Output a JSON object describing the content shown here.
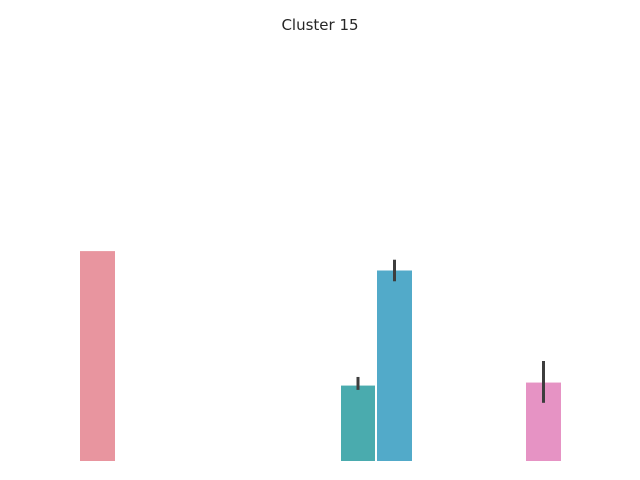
{
  "chart_data": {
    "type": "bar",
    "title": "Cluster 15",
    "xlabel": "",
    "ylabel": "",
    "grid": false,
    "axes_visible": false,
    "ylim": [
      0,
      1.0
    ],
    "bars": [
      {
        "value": 0.487,
        "error": null,
        "color": "#E8959F"
      },
      {
        "value": 0.175,
        "error": [
          0.165,
          0.195
        ],
        "color": "#4AABAE"
      },
      {
        "value": 0.442,
        "error": [
          0.417,
          0.467
        ],
        "color": "#52AAC9"
      },
      {
        "value": 0.182,
        "error": [
          0.135,
          0.232
        ],
        "color": "#E693C4"
      }
    ]
  }
}
